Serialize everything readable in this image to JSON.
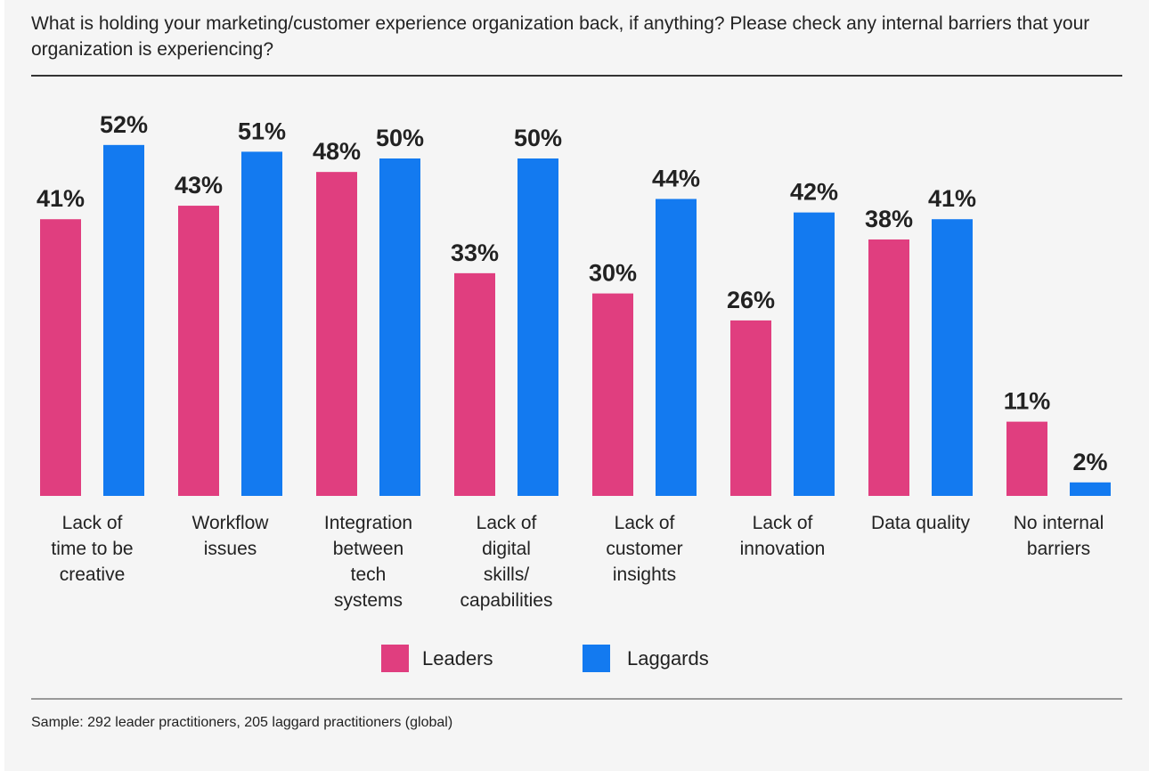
{
  "title": "What is holding your marketing/customer experience organization back, if anything? Please check any internal barriers that your organization is experiencing?",
  "colors": {
    "Leaders": "#E03E7F",
    "Laggards": "#137AF0"
  },
  "chart_data": {
    "type": "bar",
    "categories": [
      [
        "Lack of",
        "time to be",
        "creative"
      ],
      [
        "Workflow",
        "issues"
      ],
      [
        "Integration",
        "between",
        "tech",
        "systems"
      ],
      [
        "Lack of",
        "digital",
        "skills/",
        "capabilities"
      ],
      [
        "Lack of",
        "customer",
        "insights"
      ],
      [
        "Lack of",
        "innovation"
      ],
      [
        "Data quality"
      ],
      [
        "No internal",
        "barriers"
      ]
    ],
    "series": [
      {
        "name": "Leaders",
        "values": [
          41,
          43,
          48,
          33,
          30,
          26,
          38,
          11
        ]
      },
      {
        "name": "Laggards",
        "values": [
          52,
          51,
          50,
          50,
          44,
          42,
          41,
          2
        ]
      }
    ],
    "value_format": "%",
    "ylim": [
      0,
      60
    ],
    "grid": false,
    "legend": "bottom"
  },
  "legend": {
    "leaders": "Leaders",
    "laggards": "Laggards"
  },
  "note": "Sample: 292 leader practitioners, 205 laggard practitioners (global)"
}
